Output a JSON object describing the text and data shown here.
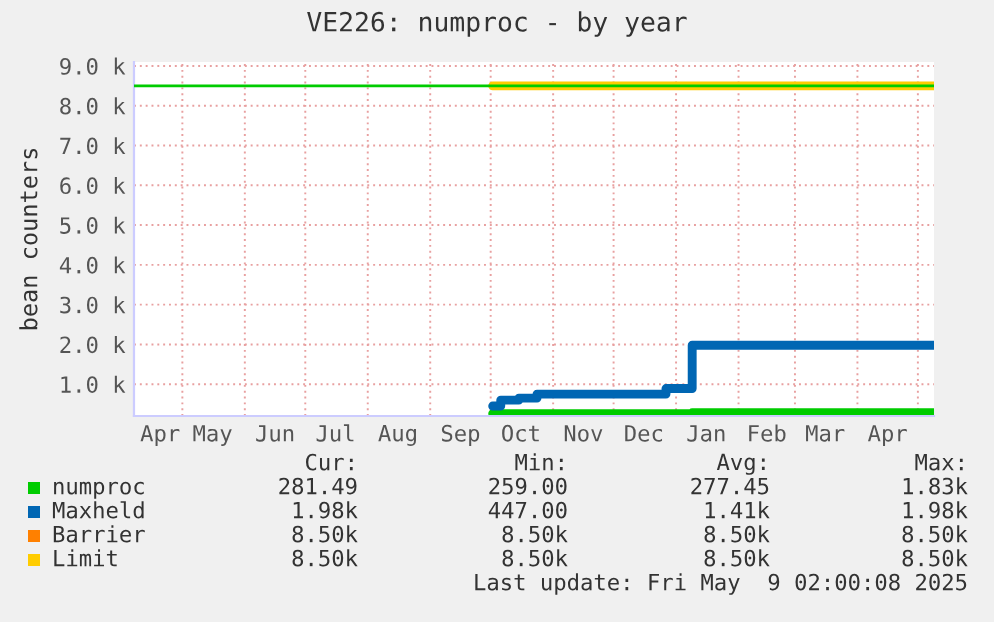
{
  "chart_data": {
    "type": "step",
    "title": "VE226: numproc - by year",
    "ylabel": "bean counters",
    "x": [
      "2024-04-07",
      "2024-10-02",
      "2024-10-06",
      "2024-10-15",
      "2024-10-24",
      "2024-12-27",
      "2025-01-09",
      "2025-05-09"
    ],
    "series": [
      {
        "name": "numproc",
        "color": "#00cc00",
        "values": [
          null,
          260,
          260,
          260,
          260,
          260,
          280,
          280
        ]
      },
      {
        "name": "Maxheld",
        "color": "#0066b3",
        "values": [
          null,
          450,
          600,
          650,
          750,
          890,
          1980,
          1980
        ]
      },
      {
        "name": "Barrier",
        "color": "#ff8000",
        "values": [
          null,
          null,
          null,
          null,
          null,
          null,
          null,
          null
        ]
      },
      {
        "name": "Limit",
        "color": "#ffcc00",
        "values": [
          null,
          8500,
          8500,
          8500,
          8500,
          8500,
          8500,
          8500
        ]
      },
      {
        "color": "#00cc00",
        "values": [
          8500,
          8500,
          8500,
          8500,
          8500,
          8500,
          8500,
          8500
        ]
      }
    ],
    "xlim": [
      "2024-04-07",
      "2025-05-09"
    ],
    "xticks": [
      {
        "value": "2024-04-20",
        "label": "Apr"
      },
      {
        "value": "2024-05-01",
        "label": null
      },
      {
        "value": "2024-05-16",
        "label": "May"
      },
      {
        "value": "2024-06-01",
        "label": null
      },
      {
        "value": "2024-06-16",
        "label": "Jun"
      },
      {
        "value": "2024-07-01",
        "label": null
      },
      {
        "value": "2024-07-16",
        "label": "Jul"
      },
      {
        "value": "2024-08-01",
        "label": null
      },
      {
        "value": "2024-08-16",
        "label": "Aug"
      },
      {
        "value": "2024-09-01",
        "label": null
      },
      {
        "value": "2024-09-16",
        "label": "Sep"
      },
      {
        "value": "2024-10-01",
        "label": null
      },
      {
        "value": "2024-10-16",
        "label": "Oct"
      },
      {
        "value": "2024-11-01",
        "label": null
      },
      {
        "value": "2024-11-16",
        "label": "Nov"
      },
      {
        "value": "2024-12-01",
        "label": null
      },
      {
        "value": "2024-12-16",
        "label": "Dec"
      },
      {
        "value": "2025-01-01",
        "label": null
      },
      {
        "value": "2025-01-16",
        "label": "Jan"
      },
      {
        "value": "2025-02-01",
        "label": null
      },
      {
        "value": "2025-02-15",
        "label": "Feb"
      },
      {
        "value": "2025-03-01",
        "label": null
      },
      {
        "value": "2025-03-16",
        "label": "Mar"
      },
      {
        "value": "2025-04-01",
        "label": null
      },
      {
        "value": "2025-04-16",
        "label": "Apr"
      },
      {
        "value": "2025-05-01",
        "label": null
      }
    ],
    "ylim": [
      200,
      9100
    ],
    "yticks": [
      {
        "value": 1000,
        "label": "1.0 k"
      },
      {
        "value": 2000,
        "label": "2.0 k"
      },
      {
        "value": 3000,
        "label": "3.0 k"
      },
      {
        "value": 4000,
        "label": "4.0 k"
      },
      {
        "value": 5000,
        "label": "5.0 k"
      },
      {
        "value": 6000,
        "label": "6.0 k"
      },
      {
        "value": 7000,
        "label": "7.0 k"
      },
      {
        "value": 8000,
        "label": "8.0 k"
      },
      {
        "value": 9000,
        "label": "9.0 k"
      }
    ],
    "grid": true,
    "legend": "bottom",
    "annotations": [
      "Cur:",
      "Min:",
      "Avg:",
      "Max:",
      "281.49",
      "259.00",
      "277.45",
      "1.83k",
      "1.98k",
      "447.00",
      "1.41k",
      "1.98k",
      "8.50k",
      "8.50k",
      "8.50k",
      "8.50k",
      "8.50k",
      "8.50k",
      "8.50k",
      "8.50k",
      "Last update: Fri May  9 02:00:08 2025"
    ]
  }
}
